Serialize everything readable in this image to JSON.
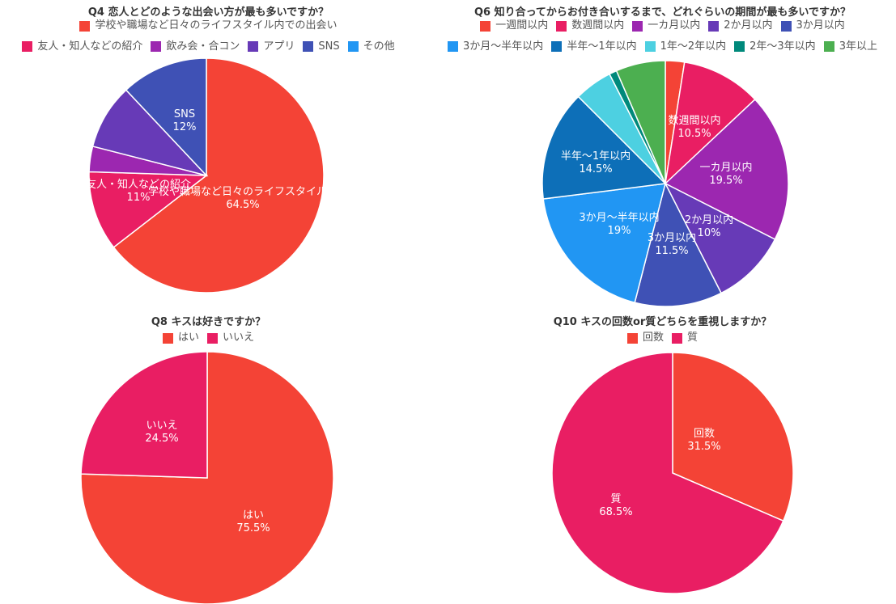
{
  "chart_data": [
    {
      "type": "pie",
      "title": "Q4 恋人とどのような出会い方が最も多いですか？",
      "series": [
        {
          "name": "学校や職場など日々のライフスタイル内での出会い",
          "value": 64.5,
          "label_name": "学校や職場など日々のライフスタイル内",
          "label_value": "64.5%",
          "color": "#F44336"
        },
        {
          "name": "友人・知人などの紹介",
          "value": 11,
          "label_name": "友人・知人などの紹介",
          "label_value": "11%",
          "color": "#E91E63"
        },
        {
          "name": "飲み会・合コン",
          "value": 3.5,
          "label_name": "",
          "label_value": "",
          "color": "#9C27B0"
        },
        {
          "name": "アプリ",
          "value": 9,
          "label_name": "",
          "label_value": "",
          "color": "#673AB7"
        },
        {
          "name": "SNS",
          "value": 12,
          "label_name": "SNS",
          "label_value": "12%",
          "color": "#3F51B5"
        },
        {
          "name": "その他",
          "value": 0,
          "label_name": "",
          "label_value": "",
          "color": "#2196F3"
        }
      ]
    },
    {
      "type": "pie",
      "title": "Q6 知り合ってからお付き合いするまで、どれぐらいの期間が最も多いですか？",
      "series": [
        {
          "name": "一週間以内",
          "value": 2.5,
          "label_name": "",
          "label_value": "",
          "color": "#F44336"
        },
        {
          "name": "数週間以内",
          "value": 10.5,
          "label_name": "数週間以内",
          "label_value": "10.5%",
          "color": "#E91E63"
        },
        {
          "name": "一カ月以内",
          "value": 19.5,
          "label_name": "一カ月以内",
          "label_value": "19.5%",
          "color": "#9C27B0"
        },
        {
          "name": "2か月以内",
          "value": 10,
          "label_name": "2か月以内",
          "label_value": "10%",
          "color": "#673AB7"
        },
        {
          "name": "3か月以内",
          "value": 11.5,
          "label_name": "3か月以内",
          "label_value": "11.5%",
          "color": "#3F51B5"
        },
        {
          "name": "3か月〜半年以内",
          "value": 19,
          "label_name": "3か月〜半年以内",
          "label_value": "19%",
          "color": "#2196F3"
        },
        {
          "name": "半年〜1年以内",
          "value": 14.5,
          "label_name": "半年〜1年以内",
          "label_value": "14.5%",
          "color": "#0D6FB8"
        },
        {
          "name": "1年〜2年以内",
          "value": 5,
          "label_name": "",
          "label_value": "",
          "color": "#4DD0E1"
        },
        {
          "name": "2年〜3年以内",
          "value": 1,
          "label_name": "",
          "label_value": "",
          "color": "#00897B"
        },
        {
          "name": "3年以上",
          "value": 6.5,
          "label_name": "",
          "label_value": "",
          "color": "#4CAF50"
        }
      ]
    },
    {
      "type": "pie",
      "title": "Q8 キスは好きですか？",
      "series": [
        {
          "name": "はい",
          "value": 75.5,
          "label_name": "はい",
          "label_value": "75.5%",
          "color": "#F44336"
        },
        {
          "name": "いいえ",
          "value": 24.5,
          "label_name": "いいえ",
          "label_value": "24.5%",
          "color": "#E91E63"
        }
      ]
    },
    {
      "type": "pie",
      "title": "Q10 キスの回数or質どちらを重視しますか？",
      "series": [
        {
          "name": "回数",
          "value": 31.5,
          "label_name": "回数",
          "label_value": "31.5%",
          "color": "#F44336"
        },
        {
          "name": "質",
          "value": 68.5,
          "label_name": "質",
          "label_value": "68.5%",
          "color": "#E91E63"
        }
      ]
    }
  ]
}
